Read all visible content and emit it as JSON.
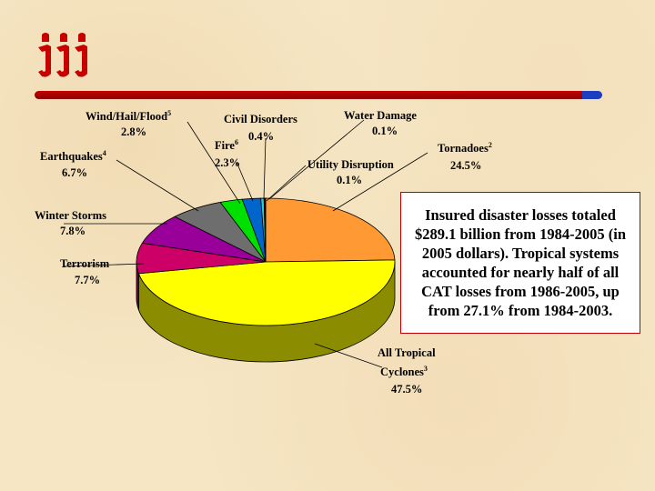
{
  "logo": {
    "text": "iii"
  },
  "note": "Insured disaster losses totaled $289.1 billion from 1984-2005 (in 2005 dollars). Tropical systems accounted for nearly half of all CAT losses from 1986-2005, up from 27.1% from 1984-2003.",
  "chart_data": {
    "type": "pie",
    "slices": [
      {
        "name": "Tornadoes",
        "sup": "2",
        "value": 24.5,
        "label": "24.5%",
        "color": "#ff9933"
      },
      {
        "name": "All Tropical Cyclones",
        "sup": "3",
        "value": 47.5,
        "label": "47.5%",
        "color": "#ffff00"
      },
      {
        "name": "Terrorism",
        "sup": "",
        "value": 7.7,
        "label": "7.7%",
        "color": "#cc0066"
      },
      {
        "name": "Winter Storms",
        "sup": "",
        "value": 7.8,
        "label": "7.8%",
        "color": "#990099"
      },
      {
        "name": "Earthquakes",
        "sup": "4",
        "value": 6.7,
        "label": "6.7%",
        "color": "#6e6e6e"
      },
      {
        "name": "Wind/Hail/Flood",
        "sup": "5",
        "value": 2.8,
        "label": "2.8%",
        "color": "#00e000"
      },
      {
        "name": "Fire",
        "sup": "6",
        "value": 2.3,
        "label": "2.3%",
        "color": "#0066cc"
      },
      {
        "name": "Civil Disorders",
        "sup": "",
        "value": 0.4,
        "label": "0.4%",
        "color": "#33cccc"
      },
      {
        "name": "Water Damage",
        "sup": "",
        "value": 0.1,
        "label": "0.1%",
        "color": "#ff66cc"
      },
      {
        "name": "Utility Disruption",
        "sup": "",
        "value": 0.1,
        "label": "0.1%",
        "color": "#6699ff"
      }
    ]
  }
}
